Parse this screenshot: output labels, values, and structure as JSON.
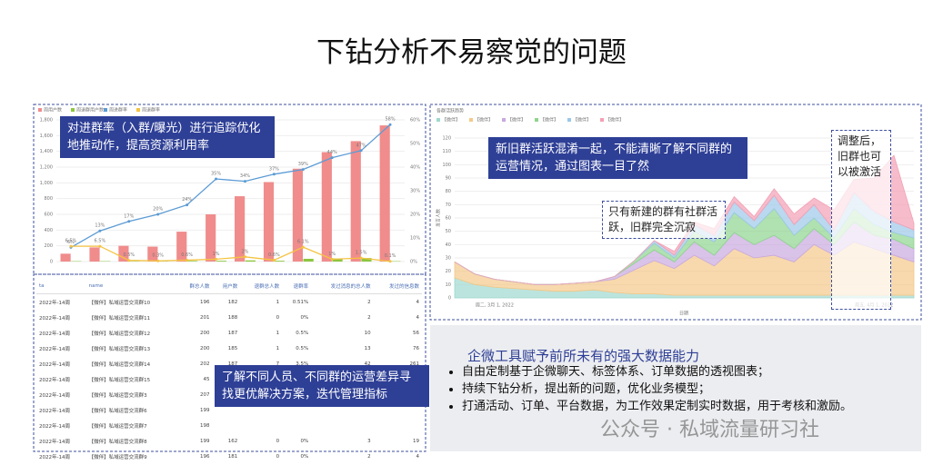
{
  "slide": {
    "title": "下钻分析不易察觉的问题",
    "notes": {
      "left_top": "对进群率（入群/曝光）进行追踪优化地推动作，提高资源利用率",
      "left_bottom": "了解不同人员、不同群的运营差异寻找更优解决方案，迭代管理指标",
      "right_top": "新旧群活跃混淆一起，不能清晰了解不同群的运营情况，通过图表一目了然",
      "right_mid": "只有新建的群有社群活跃，旧群完全沉寂",
      "right_side": "调整后，旧群也可以被激活"
    },
    "panel": {
      "heading": "企微工具赋予前所未有的强大数据能力",
      "bullets": [
        "自由定制基于企微聊天、标签体系、订单数据的透视图表；",
        "持续下钻分析，提出新的问题，优化业务模型；",
        "打通活动、订单、平台数据，为工作效果定制实时数据，用于考核和激励。"
      ]
    },
    "watermark": "公众号 · 私域流量研习社"
  },
  "table": {
    "header": [
      "ta",
      "name",
      "群总人数",
      "用户数",
      "退群总人数",
      "退群率",
      "发过消息的总人数",
      "发过的信息数"
    ],
    "rows": [
      [
        "2022年-14周",
        "【微伴】私域运营交流群10",
        "196",
        "182",
        "1",
        "0.51%",
        "2",
        "4"
      ],
      [
        "2022年-14周",
        "【微伴】私域运营交流群11",
        "201",
        "188",
        "0",
        "0%",
        "2",
        "4"
      ],
      [
        "2022年-14周",
        "【微伴】私域运营交流群12",
        "200",
        "187",
        "1",
        "0.5%",
        "10",
        "56"
      ],
      [
        "2022年-14周",
        "【微伴】私域运营交流群13",
        "200",
        "185",
        "1",
        "0.5%",
        "13",
        "76"
      ],
      [
        "2022年-14周",
        "【微伴】私域运营交流群14",
        "202",
        "187",
        "7",
        "3.5%",
        "42",
        "261"
      ],
      [
        "2022年-14周",
        "【微伴】私域运营交流群15",
        "45"
      ],
      [
        "2022年-14周",
        "【微伴】私域运营交流群3",
        "207"
      ],
      [
        "2022年-14周",
        "【微伴】私域运营交流群6",
        "199"
      ],
      [
        "2022年-14周",
        "【微伴】私域运营交流群7",
        "198"
      ],
      [
        "2022年-14周",
        "【微伴】私域运营交流群8",
        "199",
        "162",
        "0",
        "0%",
        "3",
        "19"
      ],
      [
        "2022年-14周",
        "【微伴】私域运营交流群9",
        "196",
        "181",
        "0",
        "0%",
        "2",
        "4"
      ]
    ]
  },
  "chart_data": [
    {
      "type": "bar_line",
      "categories": [
        null,
        null,
        null,
        null,
        null,
        null,
        null,
        null,
        null,
        null,
        null,
        null
      ],
      "ylim": [
        0,
        1800
      ],
      "yticks": [
        0,
        200,
        400,
        600,
        800,
        {
          "value": 1000,
          "label": "1,000"
        },
        {
          "value": 1200,
          "label": "1,200"
        },
        {
          "value": 1400,
          "label": "1,400"
        },
        {
          "value": 1600,
          "label": "1,600"
        },
        {
          "value": 1800,
          "label": "1,800"
        }
      ],
      "y2lim": [
        0,
        60
      ],
      "y2ticks": [
        {
          "value": 0,
          "label": "0%"
        },
        {
          "value": 10,
          "label": "10%"
        },
        {
          "value": 20,
          "label": "20%"
        },
        {
          "value": 30,
          "label": "30%"
        },
        {
          "value": 40,
          "label": "40%"
        },
        {
          "value": 50,
          "label": "50%"
        },
        {
          "value": 60,
          "label": "60%"
        }
      ],
      "series": [
        {
          "name": "周用户数",
          "color": "#f08c8c",
          "kind": "bar",
          "values": [
            100,
            180,
            200,
            190,
            380,
            600,
            830,
            1010,
            1180,
            1390,
            1530,
            1730
          ]
        },
        {
          "name": "周退群用户数",
          "color": "#8cc63f",
          "kind": "bar",
          "values": [
            5,
            5,
            3,
            3,
            8,
            10,
            15,
            10,
            35,
            40,
            45,
            5
          ]
        },
        {
          "name": "周进群率",
          "color": "#5b9bd5",
          "kind": "line",
          "axis": "y2",
          "values": [
            6,
            13,
            17,
            20,
            24,
            35,
            34,
            37,
            39,
            44,
            47,
            58
          ],
          "value_labels": [
            "6%",
            "13%",
            "17%",
            "20%",
            "24%",
            "35%",
            "34%",
            "37%",
            "39%",
            "44%",
            "47%",
            "58%"
          ]
        },
        {
          "name": "周退群率",
          "color": "#f5c342",
          "kind": "line",
          "axis": "y2",
          "values": [
            6.5,
            6.5,
            0.5,
            0.3,
            0.6,
            1,
            2,
            0.6,
            6.1,
            1,
            1.5,
            0.1
          ],
          "value_labels": [
            "6.5%",
            "6.5%",
            "0.5%",
            "0.3%",
            "0.6%",
            "1%",
            "2%",
            "0.6%",
            "6.1%",
            "1%",
            "1.5%",
            "0.1%"
          ]
        }
      ]
    },
    {
      "type": "stacked_area",
      "title": "各群活跃趋势",
      "ylabel": "发言人数",
      "xlabel": "日期",
      "categories": [
        null,
        null,
        "周二, 3月 1, 2022",
        null,
        null,
        null,
        null,
        null,
        null,
        null,
        null,
        null,
        null,
        null,
        null,
        null,
        null,
        null,
        null,
        null,
        null,
        "周五, 4月 1, 2022",
        null,
        null
      ],
      "ylim": [
        0,
        120
      ],
      "yticks": [
        0,
        10,
        20,
        30,
        40,
        50,
        60,
        70,
        80,
        90,
        100,
        110,
        120
      ],
      "series": [
        {
          "name": "【微伴】",
          "color": "#9fd8d0",
          "values": [
            15,
            10,
            8,
            7,
            6,
            5,
            5,
            6,
            4,
            3,
            3,
            2,
            2,
            2,
            2,
            2,
            2,
            2,
            2,
            2,
            2,
            2,
            2,
            2
          ]
        },
        {
          "name": "【微伴】",
          "color": "#f4c98a",
          "values": [
            12,
            8,
            6,
            5,
            4,
            5,
            6,
            6,
            10,
            18,
            25,
            20,
            30,
            22,
            35,
            28,
            30,
            25,
            38,
            30,
            40,
            35,
            30,
            25
          ]
        },
        {
          "name": "【微伴】",
          "color": "#c9a9e0",
          "values": [
            0,
            0,
            0,
            0,
            0,
            0,
            0,
            0,
            2,
            5,
            8,
            5,
            10,
            8,
            12,
            10,
            15,
            10,
            12,
            8,
            15,
            10,
            12,
            10
          ]
        },
        {
          "name": "【微伴】",
          "color": "#8fd48f",
          "values": [
            0,
            0,
            0,
            0,
            0,
            0,
            0,
            0,
            0,
            2,
            5,
            3,
            8,
            10,
            15,
            12,
            20,
            10,
            8,
            5,
            10,
            8,
            5,
            8
          ]
        },
        {
          "name": "【微伴】",
          "color": "#9cc8e8",
          "values": [
            0,
            0,
            0,
            0,
            0,
            0,
            0,
            0,
            0,
            0,
            2,
            2,
            5,
            5,
            8,
            6,
            10,
            8,
            10,
            6,
            12,
            10,
            8,
            6
          ]
        },
        {
          "name": "【微伴】",
          "color": "#f3a0b5",
          "values": [
            0,
            0,
            0,
            0,
            0,
            0,
            0,
            0,
            0,
            0,
            0,
            3,
            2,
            5,
            4,
            3,
            5,
            8,
            5,
            15,
            10,
            25,
            50,
            5
          ]
        }
      ]
    }
  ]
}
